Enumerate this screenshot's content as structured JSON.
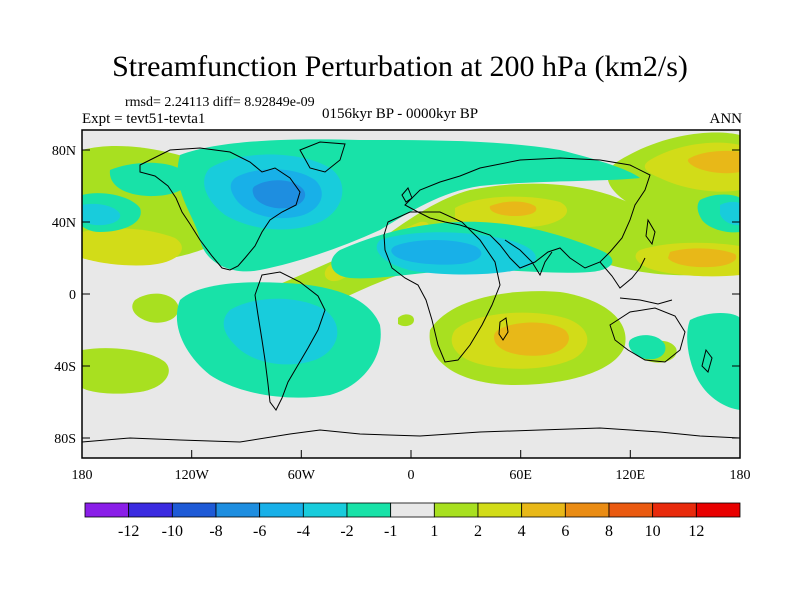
{
  "title": "Streamfunction Perturbation at 200 hPa (km2/s)",
  "stats": "rmsd= 2.24113 diff= 8.92849e-09",
  "experiment": "Expt = tevt51-tevta1",
  "period": "0156kyr BP - 0000kyr BP",
  "season": "ANN",
  "lat_labels": [
    "80N",
    "40N",
    "0",
    "40S",
    "80S"
  ],
  "lon_labels": [
    "180",
    "120W",
    "60W",
    "0",
    "60E",
    "120E",
    "180"
  ],
  "colorbar": {
    "labels": [
      "-12",
      "-10",
      "-8",
      "-6",
      "-4",
      "-2",
      "-1",
      "1",
      "2",
      "4",
      "6",
      "8",
      "10",
      "12"
    ],
    "colors": [
      "#8a1ee8",
      "#3b2be0",
      "#1e5ad6",
      "#1e8ee0",
      "#18b0e8",
      "#18ccdc",
      "#18e2a8",
      "#e8e8e8",
      "#a8e020",
      "#d2dc18",
      "#e8b818",
      "#ea8c14",
      "#ea5a10",
      "#e82a0c",
      "#e80000"
    ]
  },
  "field_colors": {
    "neutral": "#e8e8e8",
    "pos1": "#a8e020",
    "pos2": "#d2dc18",
    "pos3": "#e8b818",
    "neg1": "#18e2a8",
    "neg2": "#18ccdc",
    "neg3": "#18b0e8",
    "neg4": "#1e8ee0"
  }
}
